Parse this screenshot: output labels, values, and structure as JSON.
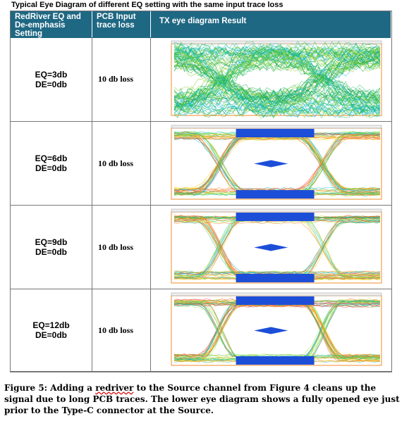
{
  "header": {
    "title": "Typical Eye Diagram of different EQ setting with the same input trace loss"
  },
  "table": {
    "columns": [
      "RedRiver EQ and De-emphasis Setting",
      "PCB Input trace loss",
      "TX eye diagram Result"
    ],
    "rows": [
      {
        "eq": "EQ=3db",
        "de": "DE=0db",
        "loss": "10 db loss"
      },
      {
        "eq": "EQ=6db",
        "de": "DE=0db",
        "loss": "10 db loss"
      },
      {
        "eq": "EQ=9db",
        "de": "DE=0db",
        "loss": "10 db loss"
      },
      {
        "eq": "EQ=12db",
        "de": "DE=0db",
        "loss": "10 db loss"
      }
    ]
  },
  "caption": {
    "parts": [
      "Figure 5: Adding a ",
      "redriver",
      " to the Source channel from Figure 4 cleans up the signal due to long PCB traces. The lower eye diagram shows a fully opened eye just prior to the Type-C connector at the Source."
    ]
  }
}
